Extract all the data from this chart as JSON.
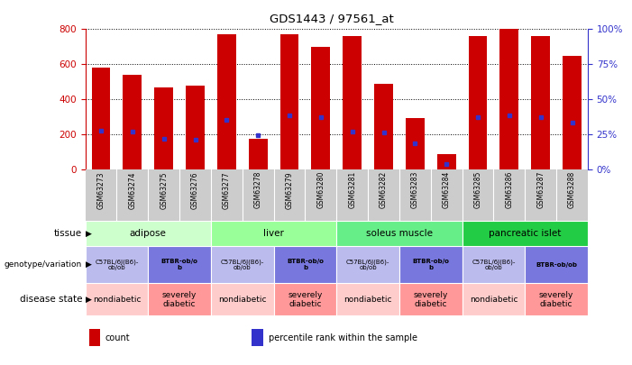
{
  "title": "GDS1443 / 97561_at",
  "samples": [
    "GSM63273",
    "GSM63274",
    "GSM63275",
    "GSM63276",
    "GSM63277",
    "GSM63278",
    "GSM63279",
    "GSM63280",
    "GSM63281",
    "GSM63282",
    "GSM63283",
    "GSM63284",
    "GSM63285",
    "GSM63286",
    "GSM63287",
    "GSM63288"
  ],
  "counts": [
    580,
    540,
    470,
    480,
    770,
    175,
    770,
    700,
    760,
    490,
    295,
    90,
    760,
    800,
    760,
    650
  ],
  "percentile_values": [
    220,
    215,
    175,
    170,
    285,
    195,
    310,
    300,
    215,
    210,
    150,
    30,
    300,
    310,
    300,
    270
  ],
  "ylim": [
    0,
    800
  ],
  "yticks": [
    0,
    200,
    400,
    600,
    800
  ],
  "y2ticks": [
    0,
    25,
    50,
    75,
    100
  ],
  "bar_color": "#cc0000",
  "percentile_color": "#3333cc",
  "tissue_groups": [
    {
      "label": "adipose",
      "start": 0,
      "end": 4,
      "color": "#ccffcc"
    },
    {
      "label": "liver",
      "start": 4,
      "end": 8,
      "color": "#99ff99"
    },
    {
      "label": "soleus muscle",
      "start": 8,
      "end": 12,
      "color": "#66ee88"
    },
    {
      "label": "pancreatic islet",
      "start": 12,
      "end": 16,
      "color": "#22cc44"
    }
  ],
  "genotype_groups": [
    {
      "label": "C57BL/6J(B6)-\nob/ob",
      "start": 0,
      "end": 2,
      "color": "#bbbbee",
      "bold": false
    },
    {
      "label": "BTBR-ob/o\nb",
      "start": 2,
      "end": 4,
      "color": "#7777dd",
      "bold": true
    },
    {
      "label": "C57BL/6J(B6)-\nob/ob",
      "start": 4,
      "end": 6,
      "color": "#bbbbee",
      "bold": false
    },
    {
      "label": "BTBR-ob/o\nb",
      "start": 6,
      "end": 8,
      "color": "#7777dd",
      "bold": true
    },
    {
      "label": "C57BL/6J(B6)-\nob/ob",
      "start": 8,
      "end": 10,
      "color": "#bbbbee",
      "bold": false
    },
    {
      "label": "BTBR-ob/o\nb",
      "start": 10,
      "end": 12,
      "color": "#7777dd",
      "bold": true
    },
    {
      "label": "C57BL/6J(B6)-\nob/ob",
      "start": 12,
      "end": 14,
      "color": "#bbbbee",
      "bold": false
    },
    {
      "label": "BTBR-ob/ob",
      "start": 14,
      "end": 16,
      "color": "#7777dd",
      "bold": true
    }
  ],
  "disease_groups": [
    {
      "label": "nondiabetic",
      "start": 0,
      "end": 2,
      "color": "#ffcccc"
    },
    {
      "label": "severely\ndiabetic",
      "start": 2,
      "end": 4,
      "color": "#ff9999"
    },
    {
      "label": "nondiabetic",
      "start": 4,
      "end": 6,
      "color": "#ffcccc"
    },
    {
      "label": "severely\ndiabetic",
      "start": 6,
      "end": 8,
      "color": "#ff9999"
    },
    {
      "label": "nondiabetic",
      "start": 8,
      "end": 10,
      "color": "#ffcccc"
    },
    {
      "label": "severely\ndiabetic",
      "start": 10,
      "end": 12,
      "color": "#ff9999"
    },
    {
      "label": "nondiabetic",
      "start": 12,
      "end": 14,
      "color": "#ffcccc"
    },
    {
      "label": "severely\ndiabetic",
      "start": 14,
      "end": 16,
      "color": "#ff9999"
    }
  ],
  "row_labels": [
    "tissue",
    "genotype/variation",
    "disease state"
  ],
  "legend_items": [
    {
      "label": "count",
      "color": "#cc0000"
    },
    {
      "label": "percentile rank within the sample",
      "color": "#3333cc"
    }
  ],
  "bg_color": "#ffffff",
  "left_axis_color": "#cc0000",
  "right_axis_color": "#3333cc",
  "sample_bg": "#cccccc"
}
